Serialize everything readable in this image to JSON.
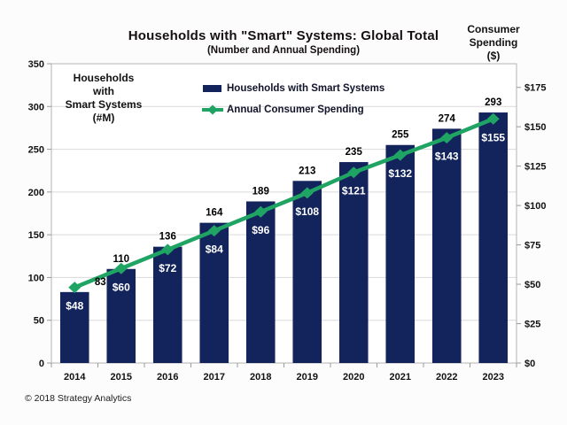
{
  "page": {
    "copyright": "© 2018 Strategy Analytics"
  },
  "chart_data": {
    "type": "bar",
    "combo": "bar+line",
    "title": "Households with \"Smart\" Systems: Global Total",
    "subtitle": "(Number and Annual Spending)",
    "categories": [
      "2014",
      "2015",
      "2016",
      "2017",
      "2018",
      "2019",
      "2020",
      "2021",
      "2022",
      "2023"
    ],
    "series": [
      {
        "name": "Households with Smart Systems",
        "type": "bar",
        "axis": "left",
        "color": "#13235b",
        "values": [
          83,
          110,
          136,
          164,
          189,
          213,
          235,
          255,
          274,
          293
        ],
        "labels": [
          "83",
          "110",
          "136",
          "164",
          "189",
          "213",
          "235",
          "255",
          "274",
          "293"
        ]
      },
      {
        "name": "Annual Consumer Spending",
        "type": "line",
        "axis": "right",
        "color": "#1fa463",
        "values": [
          48,
          60,
          72,
          84,
          96,
          108,
          121,
          132,
          143,
          155
        ],
        "labels": [
          "$48",
          "$60",
          "$72",
          "$84",
          "$96",
          "$108",
          "$121",
          "$132",
          "$143",
          "$155"
        ]
      }
    ],
    "left_axis": {
      "title_lines": [
        "Households",
        "with",
        "Smart Systems",
        "(#M)"
      ],
      "ticks": [
        0,
        50,
        100,
        150,
        200,
        250,
        300,
        350
      ],
      "tick_labels": [
        "0",
        "50",
        "100",
        "150",
        "200",
        "250",
        "300",
        "350"
      ],
      "range": [
        0,
        350
      ]
    },
    "right_axis": {
      "title_lines": [
        "Consumer",
        "Spending",
        "($)"
      ],
      "ticks": [
        0,
        25,
        50,
        75,
        100,
        125,
        150,
        175
      ],
      "tick_labels": [
        "$0",
        "$25",
        "$50",
        "$75",
        "$100",
        "$125",
        "$150",
        "$175"
      ],
      "range": [
        0,
        190
      ]
    },
    "legend_position": "top-center-inside",
    "grid": "horizontal",
    "colors": {
      "bar": "#13235b",
      "line": "#1fa463",
      "grid": "#d9d9d9",
      "axis": "#9b9b9b",
      "text": "#121212",
      "bar_value_label": "#000000",
      "spending_label": "#ffffff",
      "background": "#fdfcfd",
      "plot_background": "#ffffff"
    }
  }
}
